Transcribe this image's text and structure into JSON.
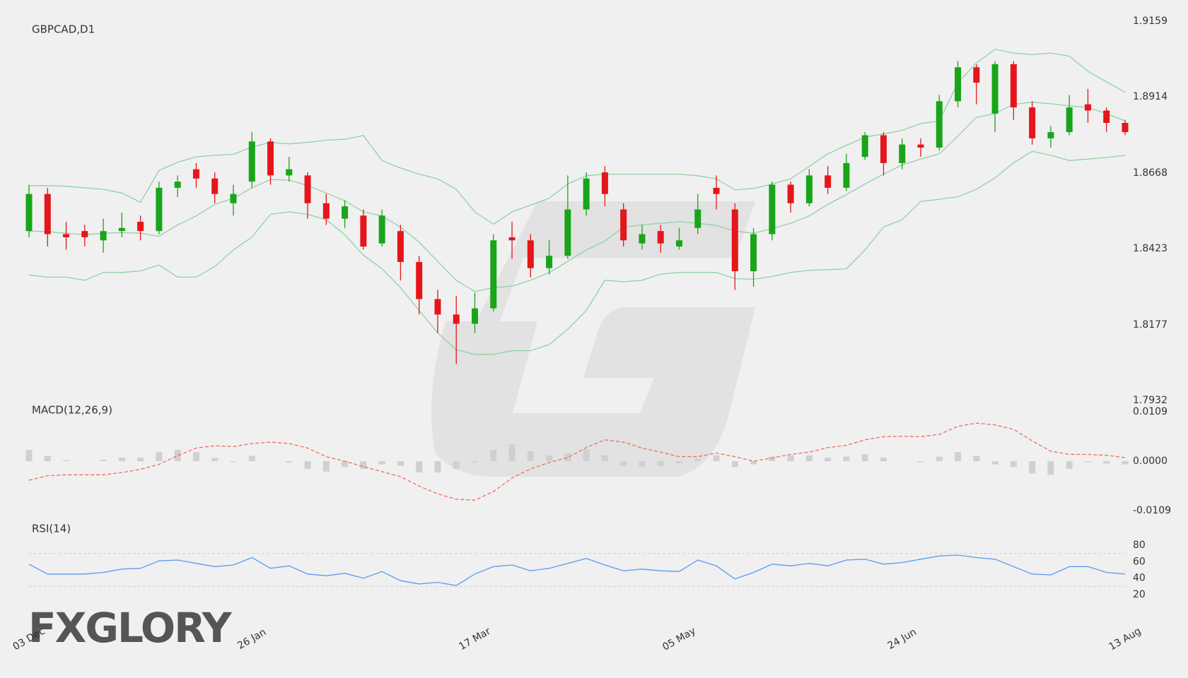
{
  "chart_data": [
    {
      "type": "candlestick",
      "title": "GBPCAD,D1",
      "categories": [
        "03 Dec",
        null,
        null,
        null,
        null,
        null,
        null,
        null,
        null,
        null,
        null,
        null,
        "26 Jan",
        null,
        null,
        null,
        null,
        null,
        null,
        null,
        null,
        null,
        null,
        null,
        "17 Mar",
        null,
        null,
        null,
        null,
        null,
        null,
        null,
        null,
        null,
        null,
        "05 May",
        null,
        null,
        null,
        null,
        null,
        null,
        null,
        null,
        null,
        null,
        null,
        "24 Jun",
        null,
        null,
        null,
        null,
        null,
        null,
        null,
        null,
        null,
        null,
        null,
        "13 Aug"
      ],
      "open": [
        1.848,
        1.86,
        1.847,
        1.848,
        1.845,
        1.848,
        1.851,
        1.848,
        1.862,
        1.868,
        1.865,
        1.857,
        1.864,
        1.877,
        1.866,
        1.866,
        1.857,
        1.852,
        1.853,
        1.844,
        1.848,
        1.838,
        1.826,
        1.821,
        1.818,
        1.823,
        1.846,
        1.845,
        1.836,
        1.84,
        1.855,
        1.867,
        1.855,
        1.844,
        1.848,
        1.843,
        1.849,
        1.862,
        1.855,
        1.835,
        1.847,
        1.863,
        1.857,
        1.866,
        1.862,
        1.872,
        1.879,
        1.87,
        1.876,
        1.875,
        1.89,
        1.901,
        1.886,
        1.902,
        1.888,
        1.878,
        1.88,
        1.889,
        1.887,
        1.883
      ],
      "high": [
        1.863,
        1.862,
        1.851,
        1.85,
        1.852,
        1.854,
        1.853,
        1.864,
        1.866,
        1.87,
        1.867,
        1.863,
        1.88,
        1.878,
        1.872,
        1.867,
        1.86,
        1.858,
        1.855,
        1.855,
        1.85,
        1.84,
        1.829,
        1.827,
        1.828,
        1.847,
        1.851,
        1.847,
        1.845,
        1.866,
        1.867,
        1.869,
        1.857,
        1.85,
        1.85,
        1.849,
        1.86,
        1.866,
        1.857,
        1.849,
        1.864,
        1.864,
        1.868,
        1.869,
        1.873,
        1.88,
        1.88,
        1.878,
        1.878,
        1.892,
        1.903,
        1.902,
        1.903,
        1.903,
        1.89,
        1.882,
        1.892,
        1.894,
        1.888,
        1.884
      ],
      "low": [
        1.846,
        1.843,
        1.842,
        1.843,
        1.841,
        1.846,
        1.845,
        1.847,
        1.859,
        1.862,
        1.857,
        1.853,
        1.862,
        1.863,
        1.864,
        1.852,
        1.85,
        1.849,
        1.842,
        1.843,
        1.832,
        1.821,
        1.815,
        1.805,
        1.815,
        1.822,
        1.839,
        1.833,
        1.834,
        1.839,
        1.853,
        1.856,
        1.843,
        1.842,
        1.841,
        1.842,
        1.847,
        1.855,
        1.829,
        1.83,
        1.845,
        1.854,
        1.856,
        1.86,
        1.861,
        1.871,
        1.866,
        1.868,
        1.872,
        1.874,
        1.888,
        1.889,
        1.88,
        1.884,
        1.876,
        1.875,
        1.879,
        1.883,
        1.88,
        1.879
      ],
      "close": [
        1.86,
        1.847,
        1.846,
        1.846,
        1.848,
        1.849,
        1.848,
        1.862,
        1.864,
        1.865,
        1.86,
        1.86,
        1.877,
        1.866,
        1.868,
        1.857,
        1.852,
        1.856,
        1.843,
        1.853,
        1.838,
        1.826,
        1.821,
        1.818,
        1.823,
        1.845,
        1.845,
        1.836,
        1.84,
        1.855,
        1.865,
        1.86,
        1.845,
        1.847,
        1.844,
        1.845,
        1.855,
        1.86,
        1.835,
        1.847,
        1.863,
        1.857,
        1.866,
        1.862,
        1.87,
        1.879,
        1.87,
        1.876,
        1.875,
        1.89,
        1.901,
        1.896,
        1.902,
        1.888,
        1.878,
        1.88,
        1.888,
        1.887,
        1.883,
        1.88
      ],
      "up_color": "#19a519",
      "down_color": "#e5161b",
      "bollinger": {
        "color": "#8fd1a5",
        "upper": [
          1.8627,
          1.8627,
          1.8625,
          1.862,
          1.8615,
          1.8603,
          1.8573,
          1.8676,
          1.8703,
          1.872,
          1.8725,
          1.8728,
          1.8752,
          1.8767,
          1.8762,
          1.8767,
          1.8774,
          1.8777,
          1.8789,
          1.8708,
          1.8684,
          1.8664,
          1.8649,
          1.8615,
          1.8542,
          1.8502,
          1.8542,
          1.8564,
          1.8586,
          1.8632,
          1.8659,
          1.8664,
          1.8664,
          1.8664,
          1.8664,
          1.8664,
          1.8659,
          1.8649,
          1.8613,
          1.8618,
          1.8632,
          1.8649,
          1.8689,
          1.873,
          1.8757,
          1.8784,
          1.8794,
          1.8806,
          1.8828,
          1.8836,
          1.896,
          1.9024,
          1.9068,
          1.9056,
          1.9051,
          1.9056,
          1.9046,
          1.8997,
          1.8963,
          1.8929
        ],
        "middle": [
          1.848,
          1.8478,
          1.8473,
          1.8468,
          1.8473,
          1.8475,
          1.8473,
          1.8463,
          1.85,
          1.8529,
          1.8566,
          1.8586,
          1.862,
          1.8647,
          1.8645,
          1.8627,
          1.8603,
          1.8578,
          1.8542,
          1.8529,
          1.8493,
          1.8444,
          1.8382,
          1.8321,
          1.8284,
          1.8297,
          1.8302,
          1.8321,
          1.8345,
          1.8382,
          1.8419,
          1.8448,
          1.8493,
          1.85,
          1.8505,
          1.851,
          1.8505,
          1.8498,
          1.848,
          1.8473,
          1.8488,
          1.8505,
          1.8529,
          1.8566,
          1.8598,
          1.8632,
          1.8664,
          1.8694,
          1.8713,
          1.873,
          1.8787,
          1.8848,
          1.886,
          1.889,
          1.8897,
          1.8892,
          1.8885,
          1.888,
          1.886,
          1.8836
        ],
        "lower": [
          1.8338,
          1.8331,
          1.8331,
          1.8321,
          1.8346,
          1.8346,
          1.8351,
          1.837,
          1.8331,
          1.8331,
          1.8365,
          1.8419,
          1.8461,
          1.8534,
          1.8542,
          1.8534,
          1.8517,
          1.8468,
          1.8402,
          1.8358,
          1.8297,
          1.8223,
          1.815,
          1.8096,
          1.8081,
          1.8081,
          1.8093,
          1.8093,
          1.8113,
          1.8162,
          1.8223,
          1.8321,
          1.8316,
          1.8321,
          1.8341,
          1.8346,
          1.8346,
          1.8346,
          1.8326,
          1.8324,
          1.8333,
          1.8346,
          1.8353,
          1.8355,
          1.8358,
          1.8419,
          1.8493,
          1.8517,
          1.8576,
          1.8583,
          1.8591,
          1.8615,
          1.8652,
          1.8701,
          1.8738,
          1.8725,
          1.8708,
          1.8713,
          1.8718,
          1.8725
        ]
      },
      "ylim": [
        1.7932,
        1.9159
      ],
      "yticks": [
        1.9159,
        1.8914,
        1.8668,
        1.8423,
        1.8177,
        1.7932
      ]
    },
    {
      "type": "macd",
      "title": "MACD(12,26,9)",
      "histogram": [
        0.0025,
        0.0012,
        0.0002,
        0,
        0.0003,
        0.0008,
        0.0008,
        0.002,
        0.0025,
        0.002,
        0.0007,
        -0.0002,
        0.0012,
        0,
        -0.0003,
        -0.0017,
        -0.0023,
        -0.0013,
        -0.0017,
        -0.0007,
        -0.001,
        -0.0025,
        -0.0025,
        -0.0017,
        -0.0003,
        0.0025,
        0.0037,
        0.0022,
        0.0013,
        0.0017,
        0.0027,
        0.0013,
        -0.001,
        -0.0013,
        -0.001,
        -0.0005,
        0.0005,
        0.0013,
        -0.0013,
        -0.0007,
        0.001,
        0.0013,
        0.0013,
        0.0008,
        0.001,
        0.0015,
        0.0008,
        0,
        -0.0002,
        0.001,
        0.002,
        0.0012,
        -0.0007,
        -0.0013,
        -0.0027,
        -0.003,
        -0.0017,
        -0.0002,
        -0.0005,
        -0.0007
      ],
      "histogram_color": "#d0d0d0",
      "line": [
        -0.0042,
        -0.0032,
        -0.003,
        -0.003,
        -0.003,
        -0.0025,
        -0.0018,
        -0.0007,
        0.0012,
        0.0029,
        0.0034,
        0.0032,
        0.0039,
        0.0042,
        0.0039,
        0.0029,
        0.001,
        0,
        -0.0012,
        -0.0023,
        -0.0034,
        -0.0055,
        -0.0072,
        -0.0084,
        -0.0086,
        -0.0067,
        -0.0037,
        -0.0017,
        -0.0003,
        0.0008,
        0.003,
        0.0047,
        0.0042,
        0.0029,
        0.002,
        0.001,
        0.001,
        0.0018,
        0.001,
        0,
        0.0007,
        0.0015,
        0.002,
        0.003,
        0.0035,
        0.0047,
        0.0054,
        0.0055,
        0.0054,
        0.0059,
        0.0077,
        0.0084,
        0.008,
        0.007,
        0.0045,
        0.0022,
        0.0015,
        0.0015,
        0.0013,
        0.0008
      ],
      "line_color": "#f26a5e",
      "ylim": [
        -0.0109,
        0.0109
      ],
      "yticks": [
        0.0109,
        {
          "value": 0,
          "label": "0.0000"
        },
        -0.0109
      ]
    },
    {
      "type": "line",
      "title": "RSI(14)",
      "values": [
        57,
        45,
        45,
        45,
        47,
        51,
        52,
        61,
        62,
        58,
        54,
        56,
        65,
        52,
        55,
        45,
        43,
        46,
        40,
        48,
        37,
        33,
        35,
        31,
        45,
        54,
        56,
        49,
        52,
        58,
        64,
        56,
        49,
        51,
        49,
        48,
        62,
        55,
        39,
        47,
        57,
        55,
        58,
        55,
        62,
        63,
        57,
        59,
        63,
        67,
        68,
        65,
        63,
        54,
        45,
        44,
        54,
        54,
        47,
        45
      ],
      "color": "#5b9bf0",
      "levels": [
        30,
        70
      ],
      "ylim": [
        20,
        80
      ],
      "yticks": [
        20,
        40,
        60,
        80
      ]
    }
  ],
  "logo": "FXGLORY"
}
